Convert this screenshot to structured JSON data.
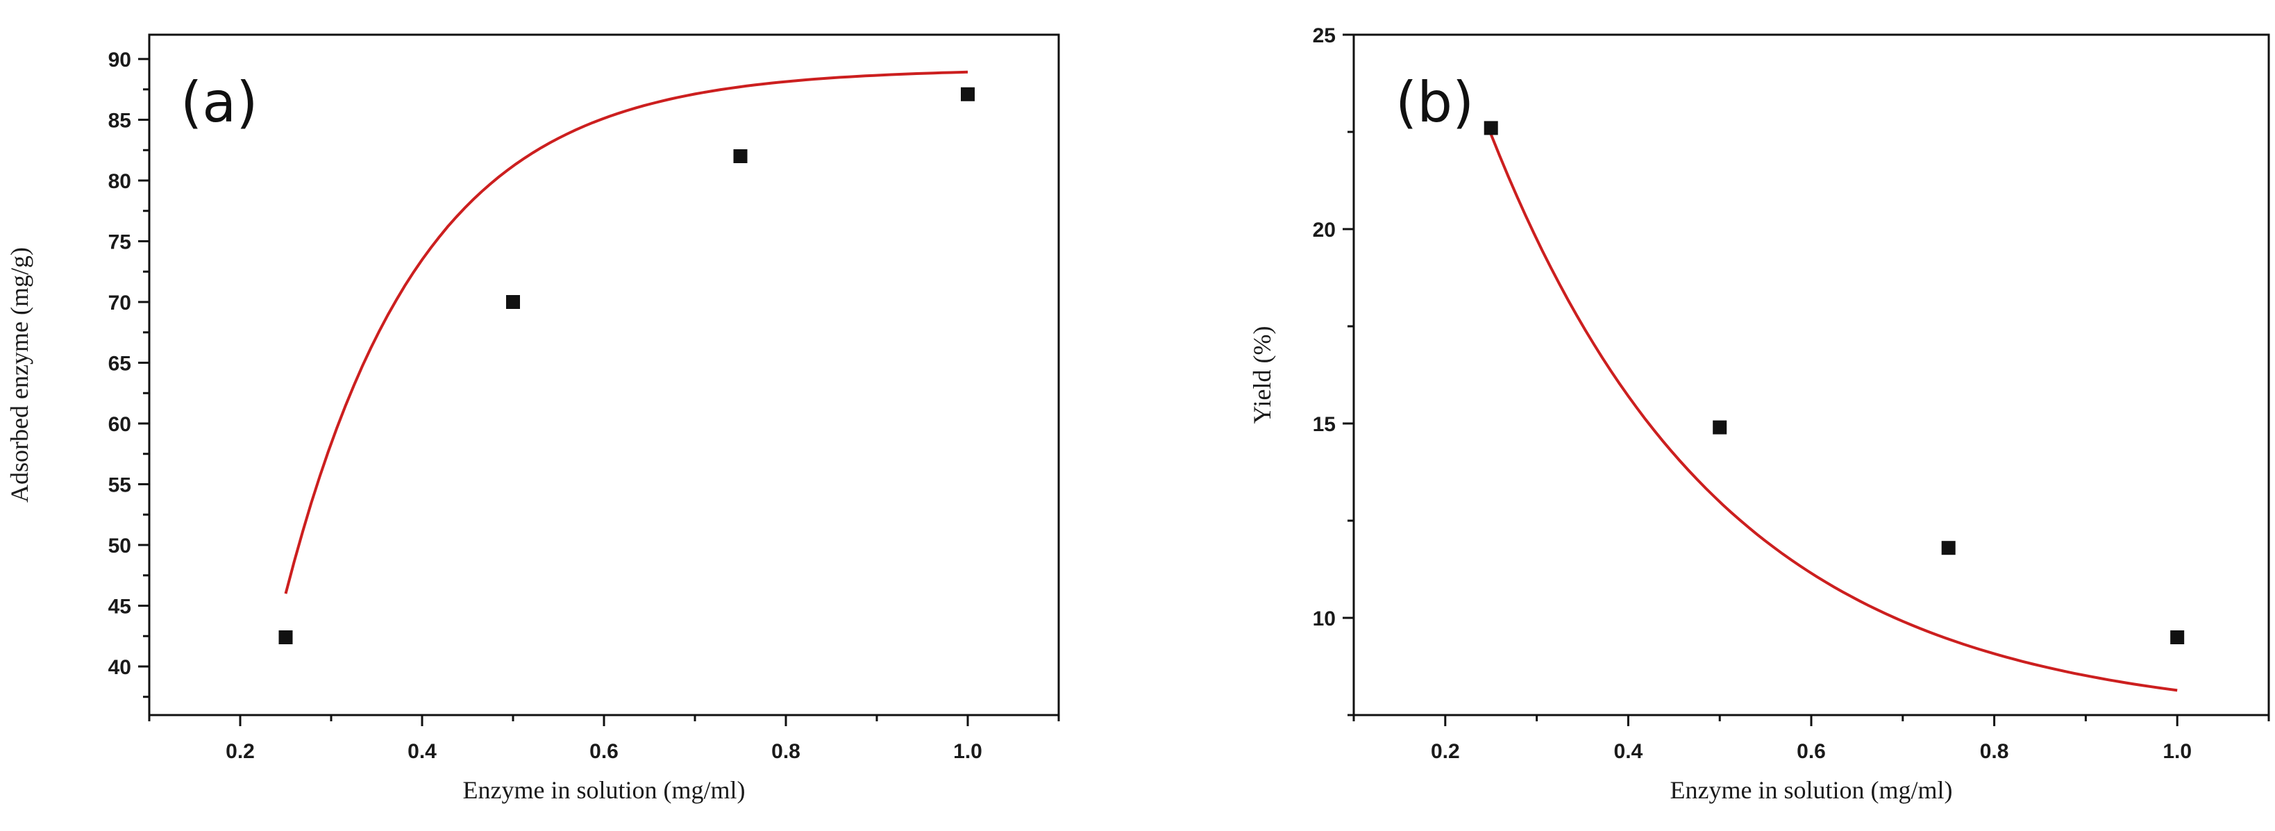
{
  "chart_data": [
    {
      "type": "scatter",
      "panel_label": "(a)",
      "title": "",
      "xlabel": "Enzyme in solution (mg/ml)",
      "ylabel": "Adsorbed enzyme (mg/g)",
      "xlim": [
        0.1,
        1.1
      ],
      "ylim": [
        36,
        92
      ],
      "xticks": [
        0.2,
        0.4,
        0.6,
        0.8,
        1.0
      ],
      "xtick_labels": [
        "0.2",
        "0.4",
        "0.6",
        "0.8",
        "1.0"
      ],
      "yticks": [
        40,
        45,
        50,
        55,
        60,
        65,
        70,
        75,
        80,
        85,
        90
      ],
      "ytick_labels": [
        "40",
        "45",
        "50",
        "55",
        "60",
        "65",
        "70",
        "75",
        "80",
        "85",
        "90"
      ],
      "x": [
        0.25,
        0.5,
        0.75,
        1.0
      ],
      "y": [
        42.4,
        70.0,
        82.0,
        87.1
      ],
      "fit": {
        "model": "exponential-rise",
        "params": {
          "A": 89.2,
          "B": 233,
          "k": 6.74
        }
      },
      "grid": false,
      "legend": "none"
    },
    {
      "type": "scatter",
      "panel_label": "(b)",
      "title": "",
      "xlabel": "Enzyme in solution (mg/ml)",
      "ylabel": "Yield (%)",
      "xlim": [
        0.1,
        1.1
      ],
      "ylim": [
        7.5,
        25
      ],
      "xticks": [
        0.2,
        0.4,
        0.6,
        0.8,
        1.0
      ],
      "xtick_labels": [
        "0.2",
        "0.4",
        "0.6",
        "0.8",
        "1.0"
      ],
      "yticks": [
        10,
        15,
        20,
        25
      ],
      "ytick_labels": [
        "10",
        "15",
        "20",
        "25"
      ],
      "x": [
        0.25,
        0.5,
        0.75,
        1.0
      ],
      "y": [
        22.6,
        14.9,
        11.8,
        9.5
      ],
      "fit": {
        "model": "exponential-decay",
        "params": {
          "A": 7.35,
          "B": 40.4,
          "k": 3.94
        }
      },
      "grid": false,
      "legend": "none"
    }
  ],
  "colors": {
    "fit_line": "#cc1f1f",
    "marker": "#111111",
    "axis": "#111111"
  }
}
